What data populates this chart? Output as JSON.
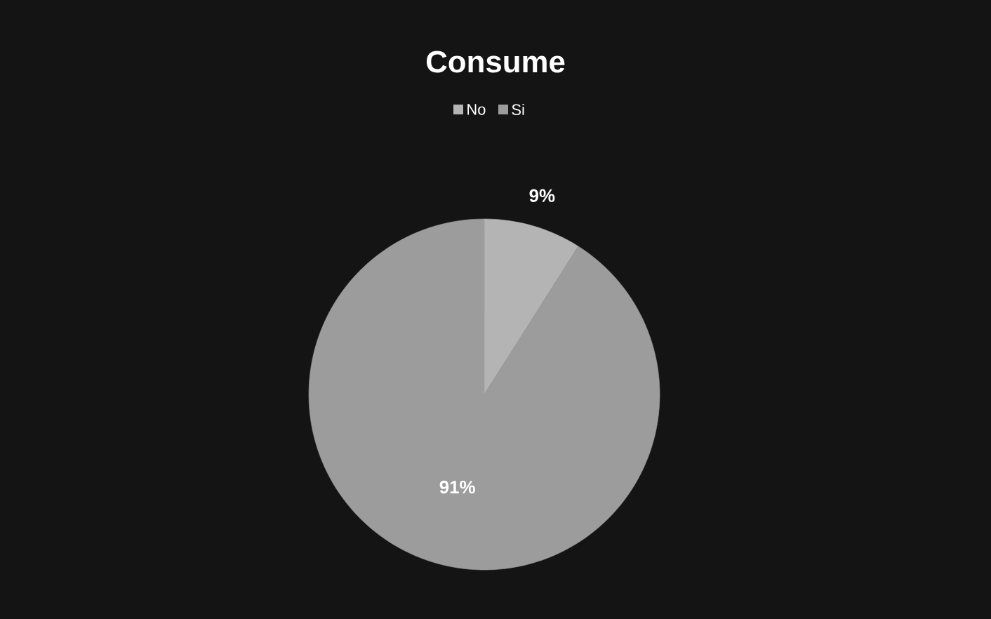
{
  "chart_data": {
    "type": "pie",
    "title": "Consume",
    "categories": [
      "No",
      "Si"
    ],
    "values": [
      9,
      91
    ],
    "value_labels": [
      "9%",
      "91%"
    ],
    "colors": [
      "#b4b4b4",
      "#9c9c9c"
    ],
    "legend": "top"
  }
}
